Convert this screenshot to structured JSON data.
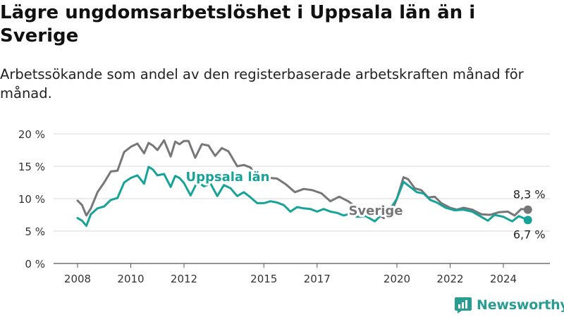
{
  "title": "Lägre ungdomsarbetslöshet i Uppsala län än i Sverige",
  "subtitle": "Arbetssökande som andel av den registerbaserade arbetskraften månad för månad.",
  "brand": "Newsworthy",
  "colors": {
    "uppsala": "#17a398",
    "sverige": "#77777a",
    "grid": "#d9d9d9",
    "brand": "#2a9d93"
  },
  "chart_data": {
    "type": "line",
    "x_ticks": [
      "2008",
      "2010",
      "2012",
      "2015",
      "2017",
      "2020",
      "2022",
      "2024"
    ],
    "y_ticks": [
      "0 %",
      "5 %",
      "10 %",
      "15 %",
      "20 %"
    ],
    "ylim": [
      0,
      20
    ],
    "xlim": [
      2007.9,
      2025.2
    ],
    "grid": true,
    "series": [
      {
        "name": "Sverige",
        "color": "#77777a",
        "end_label": "8,3 %",
        "points": [
          [
            2008.0,
            9.7
          ],
          [
            2008.17,
            9.0
          ],
          [
            2008.33,
            7.4
          ],
          [
            2008.5,
            8.5
          ],
          [
            2008.75,
            11.0
          ],
          [
            2009.0,
            12.5
          ],
          [
            2009.25,
            14.2
          ],
          [
            2009.5,
            14.3
          ],
          [
            2009.75,
            17.2
          ],
          [
            2010.0,
            18.0
          ],
          [
            2010.25,
            18.5
          ],
          [
            2010.5,
            17.0
          ],
          [
            2010.67,
            18.6
          ],
          [
            2010.83,
            18.2
          ],
          [
            2011.0,
            17.5
          ],
          [
            2011.25,
            19.0
          ],
          [
            2011.5,
            16.5
          ],
          [
            2011.67,
            18.8
          ],
          [
            2011.83,
            18.4
          ],
          [
            2012.0,
            18.9
          ],
          [
            2012.17,
            18.9
          ],
          [
            2012.42,
            16.3
          ],
          [
            2012.67,
            18.4
          ],
          [
            2012.92,
            18.2
          ],
          [
            2013.17,
            16.6
          ],
          [
            2013.42,
            17.8
          ],
          [
            2013.67,
            17.3
          ],
          [
            2014.0,
            15.0
          ],
          [
            2014.25,
            15.2
          ],
          [
            2014.5,
            14.8
          ],
          [
            2014.75,
            13.0
          ],
          [
            2015.0,
            12.6
          ],
          [
            2015.25,
            13.2
          ],
          [
            2015.5,
            13.1
          ],
          [
            2015.83,
            12.2
          ],
          [
            2016.17,
            11.0
          ],
          [
            2016.5,
            11.5
          ],
          [
            2016.83,
            11.3
          ],
          [
            2017.17,
            10.8
          ],
          [
            2017.5,
            9.6
          ],
          [
            2017.83,
            10.3
          ],
          [
            2018.17,
            9.6
          ],
          [
            2018.5,
            8.6
          ],
          [
            2018.83,
            8.3
          ],
          [
            2019.17,
            8.0
          ],
          [
            2019.5,
            7.0
          ],
          [
            2019.75,
            7.5
          ],
          [
            2020.0,
            10.0
          ],
          [
            2020.25,
            13.3
          ],
          [
            2020.42,
            13.0
          ],
          [
            2020.67,
            11.6
          ],
          [
            2020.92,
            11.3
          ],
          [
            2021.17,
            10.2
          ],
          [
            2021.42,
            10.3
          ],
          [
            2021.67,
            9.3
          ],
          [
            2022.0,
            8.6
          ],
          [
            2022.25,
            8.3
          ],
          [
            2022.5,
            8.6
          ],
          [
            2022.83,
            8.3
          ],
          [
            2023.17,
            7.6
          ],
          [
            2023.5,
            7.5
          ],
          [
            2023.83,
            7.9
          ],
          [
            2024.17,
            8.0
          ],
          [
            2024.42,
            7.4
          ],
          [
            2024.67,
            8.4
          ],
          [
            2024.92,
            8.3
          ]
        ]
      },
      {
        "name": "Uppsala län",
        "color": "#17a398",
        "end_label": "6,7 %",
        "points": [
          [
            2008.0,
            7.0
          ],
          [
            2008.17,
            6.6
          ],
          [
            2008.33,
            5.8
          ],
          [
            2008.5,
            7.6
          ],
          [
            2008.75,
            8.5
          ],
          [
            2009.0,
            8.8
          ],
          [
            2009.25,
            9.8
          ],
          [
            2009.5,
            10.1
          ],
          [
            2009.75,
            12.5
          ],
          [
            2010.0,
            13.2
          ],
          [
            2010.25,
            13.6
          ],
          [
            2010.5,
            12.3
          ],
          [
            2010.67,
            14.9
          ],
          [
            2010.83,
            14.5
          ],
          [
            2011.0,
            13.6
          ],
          [
            2011.25,
            13.8
          ],
          [
            2011.5,
            11.8
          ],
          [
            2011.67,
            13.5
          ],
          [
            2011.83,
            13.2
          ],
          [
            2012.0,
            12.4
          ],
          [
            2012.25,
            10.5
          ],
          [
            2012.5,
            12.6
          ],
          [
            2012.75,
            11.9
          ],
          [
            2013.0,
            12.3
          ],
          [
            2013.25,
            10.4
          ],
          [
            2013.5,
            12.1
          ],
          [
            2013.75,
            11.6
          ],
          [
            2014.0,
            10.4
          ],
          [
            2014.25,
            11.0
          ],
          [
            2014.5,
            10.2
          ],
          [
            2014.75,
            9.3
          ],
          [
            2015.0,
            9.3
          ],
          [
            2015.25,
            9.6
          ],
          [
            2015.5,
            9.4
          ],
          [
            2015.75,
            9.0
          ],
          [
            2016.0,
            8.0
          ],
          [
            2016.25,
            8.7
          ],
          [
            2016.5,
            8.5
          ],
          [
            2016.75,
            8.4
          ],
          [
            2017.0,
            8.0
          ],
          [
            2017.25,
            8.4
          ],
          [
            2017.5,
            8.0
          ],
          [
            2017.75,
            7.8
          ],
          [
            2018.0,
            7.4
          ],
          [
            2018.25,
            7.7
          ],
          [
            2018.5,
            7.2
          ],
          [
            2018.83,
            7.3
          ],
          [
            2019.17,
            6.5
          ],
          [
            2019.5,
            7.8
          ],
          [
            2019.83,
            8.9
          ],
          [
            2020.0,
            10.0
          ],
          [
            2020.25,
            12.6
          ],
          [
            2020.5,
            11.8
          ],
          [
            2020.75,
            11.0
          ],
          [
            2021.0,
            10.8
          ],
          [
            2021.25,
            9.8
          ],
          [
            2021.5,
            9.4
          ],
          [
            2021.83,
            8.6
          ],
          [
            2022.17,
            8.2
          ],
          [
            2022.5,
            8.3
          ],
          [
            2022.83,
            8.0
          ],
          [
            2023.17,
            7.2
          ],
          [
            2023.42,
            6.6
          ],
          [
            2023.67,
            7.5
          ],
          [
            2024.0,
            7.2
          ],
          [
            2024.33,
            6.5
          ],
          [
            2024.58,
            7.3
          ],
          [
            2024.92,
            6.7
          ]
        ]
      }
    ],
    "inline_labels": [
      "Uppsala län",
      "Sverige"
    ]
  }
}
